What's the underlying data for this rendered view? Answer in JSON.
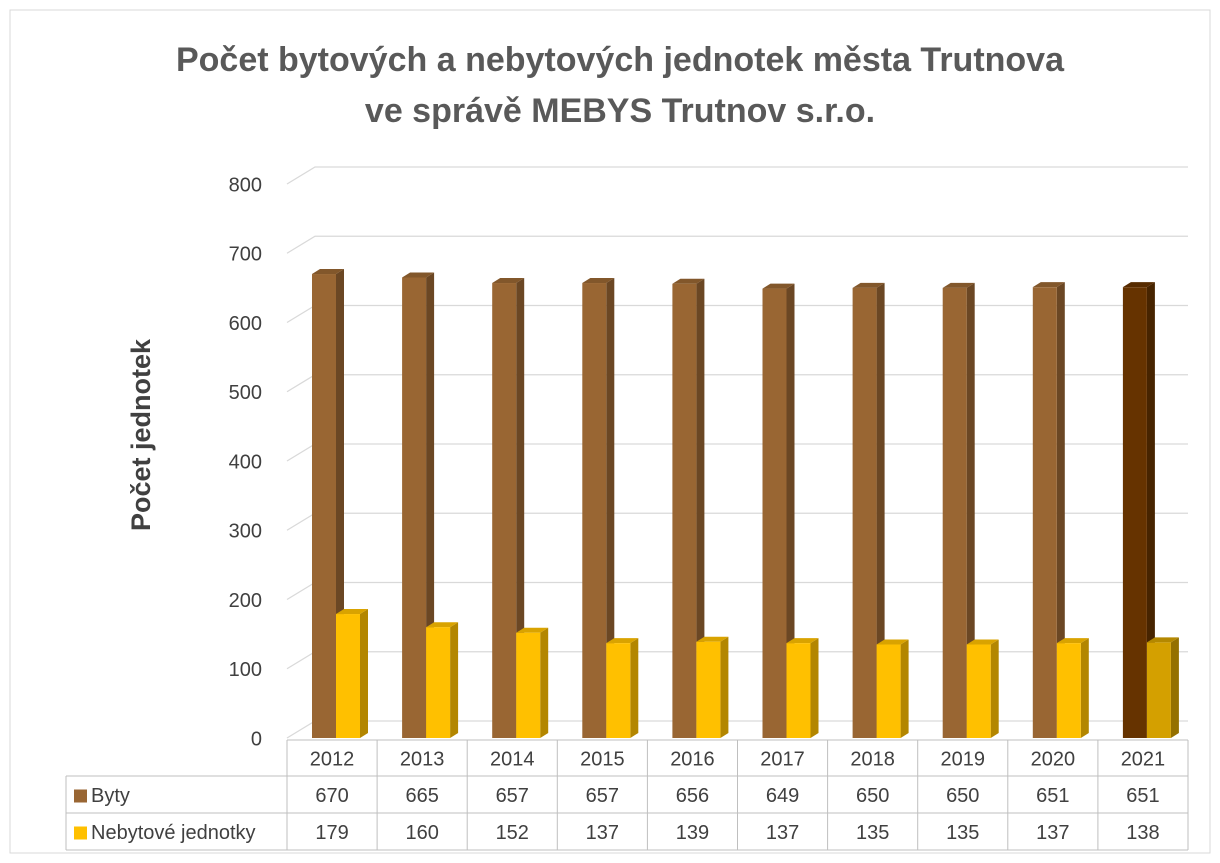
{
  "chart_data": {
    "type": "bar3d",
    "title": [
      "Počet bytových a nebytových jednotek města Trutnova",
      "ve správě MEBYS Trutnov s.r.o."
    ],
    "y_label": "Počet jednotek",
    "categories": [
      "2012",
      "2013",
      "2014",
      "2015",
      "2016",
      "2017",
      "2018",
      "2019",
      "2020",
      "2021"
    ],
    "series": [
      {
        "name": "Byty",
        "color": "#996633",
        "colors": [
          "#996633",
          "#996633",
          "#996633",
          "#996633",
          "#996633",
          "#996633",
          "#996633",
          "#996633",
          "#996633",
          "#663300"
        ],
        "values": [
          670,
          665,
          657,
          657,
          656,
          649,
          650,
          650,
          651,
          651
        ]
      },
      {
        "name": "Nebytové jednotky",
        "color": "#ffc000",
        "colors": [
          "#ffc000",
          "#ffc000",
          "#ffc000",
          "#ffc000",
          "#ffc000",
          "#ffc000",
          "#ffc000",
          "#ffc000",
          "#ffc000",
          "#d4a000"
        ],
        "values": [
          179,
          160,
          152,
          137,
          139,
          137,
          135,
          135,
          137,
          138
        ]
      }
    ],
    "ylim": [
      0,
      800
    ],
    "yticks": [
      0,
      100,
      200,
      300,
      400,
      500,
      600,
      700,
      800
    ],
    "grid": true,
    "data_table": true
  }
}
